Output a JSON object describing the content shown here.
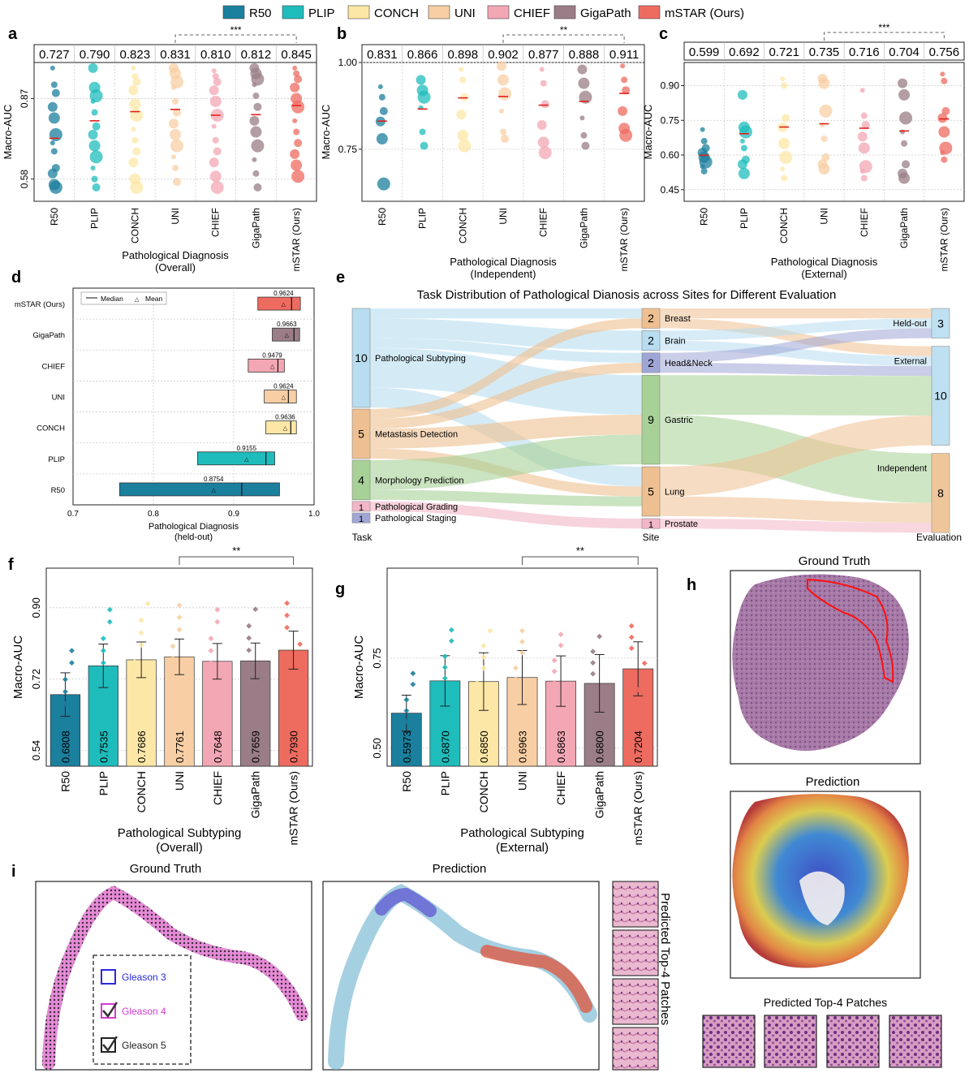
{
  "legend": {
    "entries": [
      {
        "name": "R50",
        "color": "#1b7f9e"
      },
      {
        "name": "PLIP",
        "color": "#1fbcbc"
      },
      {
        "name": "CONCH",
        "color": "#fde7a6"
      },
      {
        "name": "UNI",
        "color": "#f8cfa4"
      },
      {
        "name": "CHIEF",
        "color": "#f3a7b4"
      },
      {
        "name": "GigaPath",
        "color": "#9a7d86"
      },
      {
        "name": "mSTAR (Ours)",
        "color": "#ee6b60"
      }
    ]
  },
  "panels": {
    "a": "a",
    "b": "b",
    "c": "c",
    "d": "d",
    "e": "e",
    "f": "f",
    "g": "g",
    "h": "h",
    "i": "i"
  },
  "chart_data": [
    {
      "id": "a",
      "type": "scatter",
      "categories": [
        "R50",
        "PLIP",
        "CONCH",
        "UNI",
        "CHIEF",
        "GigaPath",
        "mSTAR (Ours)"
      ],
      "means": [
        "0.727",
        "0.790",
        "0.823",
        "0.831",
        "0.810",
        "0.812",
        "0.845"
      ],
      "ylabel": "Macro-AUC",
      "yticks": [
        "0.58",
        "0.87"
      ],
      "ylim": [
        0.5,
        1.0
      ],
      "xlabel": "Pathological Diagnosis",
      "xlabel2": "(Overall)",
      "significance": "***",
      "points": [
        [
          0.98,
          0.92,
          0.89,
          0.84,
          0.8,
          0.74,
          0.71,
          0.68,
          0.62,
          0.6,
          0.56,
          0.55
        ],
        [
          0.98,
          0.91,
          0.88,
          0.86,
          0.82,
          0.77,
          0.74,
          0.7,
          0.66,
          0.62,
          0.58,
          0.55
        ],
        [
          0.98,
          0.95,
          0.93,
          0.9,
          0.85,
          0.81,
          0.76,
          0.72,
          0.68,
          0.64,
          0.58,
          0.55
        ],
        [
          0.98,
          0.96,
          0.93,
          0.91,
          0.86,
          0.82,
          0.78,
          0.74,
          0.7,
          0.66,
          0.62,
          0.57
        ],
        [
          0.97,
          0.95,
          0.93,
          0.9,
          0.86,
          0.81,
          0.77,
          0.72,
          0.68,
          0.64,
          0.59,
          0.55
        ],
        [
          0.98,
          0.96,
          0.94,
          0.92,
          0.88,
          0.84,
          0.79,
          0.75,
          0.7,
          0.65,
          0.6,
          0.55
        ],
        [
          0.98,
          0.96,
          0.94,
          0.91,
          0.87,
          0.84,
          0.79,
          0.75,
          0.71,
          0.67,
          0.63,
          0.59
        ]
      ]
    },
    {
      "id": "b",
      "type": "scatter",
      "categories": [
        "R50",
        "PLIP",
        "CONCH",
        "UNI",
        "CHIEF",
        "GigaPath",
        "mSTAR (Ours)"
      ],
      "means": [
        "0.831",
        "0.866",
        "0.898",
        "0.902",
        "0.877",
        "0.888",
        "0.911"
      ],
      "ylabel": "Macro-AUC",
      "yticks": [
        "0.75",
        "1.00"
      ],
      "ylim": [
        0.6,
        1.0
      ],
      "xlabel": "Pathological Diagnosis",
      "xlabel2": "(Independent)",
      "significance": "**",
      "points": [
        [
          0.93,
          0.9,
          0.86,
          0.83,
          0.78,
          0.65
        ],
        [
          0.95,
          0.92,
          0.9,
          0.87,
          0.8,
          0.76
        ],
        [
          0.98,
          0.95,
          0.9,
          0.85,
          0.79,
          0.76
        ],
        [
          0.99,
          0.95,
          0.91,
          0.86,
          0.8,
          0.78
        ],
        [
          0.98,
          0.94,
          0.88,
          0.82,
          0.77,
          0.74
        ],
        [
          0.98,
          0.94,
          0.9,
          0.84,
          0.79,
          0.76
        ],
        [
          0.99,
          0.95,
          0.92,
          0.86,
          0.81,
          0.79
        ]
      ]
    },
    {
      "id": "c",
      "type": "scatter",
      "categories": [
        "R50",
        "PLIP",
        "CONCH",
        "UNI",
        "CHIEF",
        "GigaPath",
        "mSTAR (Ours)"
      ],
      "means": [
        "0.599",
        "0.692",
        "0.721",
        "0.735",
        "0.716",
        "0.704",
        "0.756"
      ],
      "ylabel": "Macro-AUC",
      "yticks": [
        "0.45",
        "0.60",
        "0.75",
        "0.90"
      ],
      "ylim": [
        0.4,
        1.0
      ],
      "xlabel": "Pathological Diagnosis",
      "xlabel2": "(External)",
      "significance": "***",
      "points": [
        [
          0.71,
          0.66,
          0.63,
          0.61,
          0.59,
          0.57,
          0.55,
          0.53
        ],
        [
          0.86,
          0.72,
          0.7,
          0.66,
          0.63,
          0.58,
          0.56,
          0.52
        ],
        [
          0.93,
          0.9,
          0.76,
          0.72,
          0.65,
          0.59,
          0.54,
          0.5
        ],
        [
          0.93,
          0.91,
          0.79,
          0.73,
          0.67,
          0.59,
          0.56,
          0.54
        ],
        [
          0.88,
          0.77,
          0.73,
          0.68,
          0.63,
          0.55,
          0.53,
          0.5
        ],
        [
          0.91,
          0.86,
          0.76,
          0.7,
          0.65,
          0.56,
          0.52,
          0.5
        ],
        [
          0.95,
          0.92,
          0.79,
          0.76,
          0.7,
          0.63,
          0.61,
          0.58
        ]
      ]
    },
    {
      "id": "d",
      "type": "boxplot",
      "categories": [
        "mSTAR (Ours)",
        "GigaPath",
        "CHIEF",
        "UNI",
        "CONCH",
        "PLIP",
        "R50"
      ],
      "labels": [
        "0.9624",
        "0.9663",
        "0.9479",
        "0.9624",
        "0.9636",
        "0.9155",
        "0.8754"
      ],
      "boxes": [
        {
          "q1": 0.93,
          "median": 0.972,
          "q3": 0.983,
          "mean": 0.962
        },
        {
          "q1": 0.948,
          "median": 0.975,
          "q3": 0.982,
          "mean": 0.966
        },
        {
          "q1": 0.918,
          "median": 0.955,
          "q3": 0.963,
          "mean": 0.948
        },
        {
          "q1": 0.938,
          "median": 0.968,
          "q3": 0.978,
          "mean": 0.962
        },
        {
          "q1": 0.94,
          "median": 0.971,
          "q3": 0.978,
          "mean": 0.964
        },
        {
          "q1": 0.855,
          "median": 0.94,
          "q3": 0.951,
          "mean": 0.916
        },
        {
          "q1": 0.758,
          "median": 0.91,
          "q3": 0.957,
          "mean": 0.875
        }
      ],
      "xticks": [
        "0.7",
        "0.8",
        "0.9",
        "1.0"
      ],
      "xlim": [
        0.7,
        1.0
      ],
      "xlabel": "Pathological Diagnosis",
      "xlabel2": "(held-out)",
      "legend": {
        "median": "Median",
        "mean": "Mean"
      }
    },
    {
      "id": "e",
      "type": "sankey",
      "title": "Task Distribution of Pathological Dianosis across Sites for Different Evaluation",
      "columns": [
        "Task",
        "Site",
        "Evaluation"
      ],
      "tasks": [
        {
          "name": "Pathological Subtyping",
          "count": "10",
          "value": 10,
          "color": "#b8ddf0"
        },
        {
          "name": "Metastasis Detection",
          "count": "5",
          "value": 5,
          "color": "#eebf90"
        },
        {
          "name": "Morphology Prediction",
          "count": "4",
          "value": 4,
          "color": "#a7d196"
        },
        {
          "name": "Pathological Grading",
          "count": "1",
          "value": 1,
          "color": "#f2b6c8"
        },
        {
          "name": "Pathological Staging",
          "count": "1",
          "value": 1,
          "color": "#9fa6d6"
        }
      ],
      "sites": [
        {
          "name": "Breast",
          "count": "2",
          "value": 2
        },
        {
          "name": "Brain",
          "count": "2",
          "value": 2
        },
        {
          "name": "Head&Neck",
          "count": "2",
          "value": 2
        },
        {
          "name": "Gastric",
          "count": "9",
          "value": 9
        },
        {
          "name": "Lung",
          "count": "5",
          "value": 5
        },
        {
          "name": "Prostate",
          "count": "1",
          "value": 1
        }
      ],
      "evaluations": [
        {
          "name": "Held-out",
          "count": "3",
          "value": 3
        },
        {
          "name": "External",
          "count": "10",
          "value": 10
        },
        {
          "name": "Independent",
          "count": "8",
          "value": 8
        }
      ]
    },
    {
      "id": "f",
      "type": "bar",
      "categories": [
        "R50",
        "PLIP",
        "CONCH",
        "UNI",
        "CHIEF",
        "GigaPath",
        "mSTAR (Ours)"
      ],
      "values": [
        0.6808,
        0.7535,
        0.7686,
        0.7761,
        0.7648,
        0.7659,
        0.793
      ],
      "value_labels": [
        "0.6808",
        "0.7535",
        "0.7686",
        "0.7761",
        "0.7648",
        "0.7659",
        "0.7930"
      ],
      "errors": [
        0.055,
        0.055,
        0.045,
        0.045,
        0.045,
        0.045,
        0.048
      ],
      "ylabel": "Macro-AUC",
      "yticks": [
        "0.54",
        "0.72",
        "0.90"
      ],
      "ylim": [
        0.5,
        1.0
      ],
      "xlabel": "Pathological Subtyping",
      "xlabel2": "(Overall)",
      "significance": "**"
    },
    {
      "id": "g",
      "type": "bar",
      "categories": [
        "R50",
        "PLIP",
        "CONCH",
        "UNI",
        "CHIEF",
        "GigaPath",
        "mSTAR (Ours)"
      ],
      "values": [
        0.5973,
        0.687,
        0.685,
        0.6963,
        0.6863,
        0.68,
        0.7204
      ],
      "value_labels": [
        "0.5973",
        "0.6870",
        "0.6850",
        "0.6963",
        "0.6863",
        "0.6800",
        "0.7204"
      ],
      "errors": [
        0.05,
        0.07,
        0.08,
        0.075,
        0.07,
        0.08,
        0.075
      ],
      "ylabel": "Macro-AUC",
      "yticks": [
        "0.50",
        "0.75"
      ],
      "ylim": [
        0.45,
        1.0
      ],
      "xlabel": "Pathological Subtyping",
      "xlabel2": "(External)",
      "significance": "**"
    }
  ],
  "panel_h": {
    "ground_truth_title": "Ground Truth",
    "prediction_title": "Prediction",
    "patches_title": "Predicted Top-4 Patches"
  },
  "panel_i": {
    "ground_truth_title": "Ground Truth",
    "prediction_title": "Prediction",
    "patches_title": "Predicted Top-4 Patches",
    "legend": [
      {
        "label": "Gleason 3",
        "color": "#2a2adc"
      },
      {
        "label": "Gleason 4",
        "color": "#d63bd6"
      },
      {
        "label": "Gleason 5",
        "color": "#222222"
      }
    ]
  }
}
